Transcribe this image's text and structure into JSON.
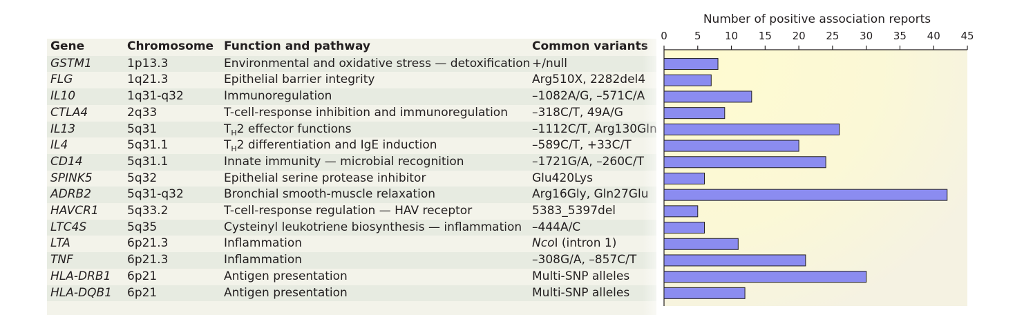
{
  "table": {
    "headers": {
      "gene": "Gene",
      "chromosome": "Chromosome",
      "function": "Function and pathway",
      "variants": "Common variants"
    },
    "rows": [
      {
        "gene": "GSTM1",
        "chromosome": "1p13.3",
        "function": "Environmental and oxidative stress — detoxification",
        "variants": "+/null"
      },
      {
        "gene": "FLG",
        "chromosome": "1q21.3",
        "function": "Epithelial barrier integrity",
        "variants": "Arg510X, 2282del4"
      },
      {
        "gene": "IL10",
        "chromosome": "1q31-q32",
        "function": "Immunoregulation",
        "variants": "–1082A/G, –571C/A"
      },
      {
        "gene": "CTLA4",
        "chromosome": "2q33",
        "function": "T-cell-response inhibition and  immunoregulation",
        "variants": "–318C/T, 49A/G"
      },
      {
        "gene": "IL13",
        "chromosome": "5q31",
        "function_pre": "T",
        "function_sub": "H",
        "function_post": "2 effector functions",
        "variants": "–1112C/T, Arg130Gln"
      },
      {
        "gene": "IL4",
        "chromosome": "5q31.1",
        "function_pre": "T",
        "function_sub": "H",
        "function_post": "2 differentiation and IgE induction",
        "variants": "–589C/T, +33C/T"
      },
      {
        "gene": "CD14",
        "chromosome": "5q31.1",
        "function": "Innate immunity — microbial recognition",
        "variants": "–1721G/A, –260C/T"
      },
      {
        "gene": "SPINK5",
        "chromosome": "5q32",
        "function": "Epithelial serine protease inhibitor",
        "variants": "Glu420Lys"
      },
      {
        "gene": "ADRB2",
        "chromosome": "5q31-q32",
        "function": "Bronchial smooth-muscle relaxation",
        "variants": "Arg16Gly, Gln27Glu"
      },
      {
        "gene": "HAVCR1",
        "chromosome": "5q33.2",
        "function": "T-cell-response regulation — HAV receptor",
        "variants": "5383_5397del"
      },
      {
        "gene": "LTC4S",
        "chromosome": "5q35",
        "function": "Cysteinyl leukotriene biosynthesis — inflammation",
        "variants": "–444A/C"
      },
      {
        "gene": "LTA",
        "chromosome": "6p21.3",
        "function": "Inflammation",
        "variants_italic": "Nco",
        "variants_rest": "I (intron 1)"
      },
      {
        "gene": "TNF",
        "chromosome": "6p21.3",
        "function": "Inflammation",
        "variants": "–308G/A, –857C/T"
      },
      {
        "gene": "HLA-DRB1",
        "chromosome": "6p21",
        "function": "Antigen presentation",
        "variants": "Multi-SNP alleles"
      },
      {
        "gene": "HLA-DQB1",
        "chromosome": "6p21",
        "function": "Antigen presentation",
        "variants": "Multi-SNP alleles"
      }
    ]
  },
  "chart_data": {
    "type": "bar",
    "orientation": "horizontal",
    "title": "",
    "xlabel": "Number of positive association reports",
    "xlim": [
      0,
      45
    ],
    "xticks": [
      0,
      5,
      10,
      15,
      20,
      25,
      30,
      35,
      40,
      45
    ],
    "categories": [
      "GSTM1",
      "FLG",
      "IL10",
      "CTLA4",
      "IL13",
      "IL4",
      "CD14",
      "SPINK5",
      "ADRB2",
      "HAVCR1",
      "LTC4S",
      "LTA",
      "TNF",
      "HLA-DRB1",
      "HLA-DQB1"
    ],
    "values": [
      8,
      7,
      13,
      9,
      26,
      20,
      24,
      6,
      42,
      5,
      6,
      11,
      21,
      30,
      12
    ],
    "bar_color": "#8b8cf0",
    "bar_stroke": "#231f20",
    "plot_background": "#fbf8d2"
  }
}
